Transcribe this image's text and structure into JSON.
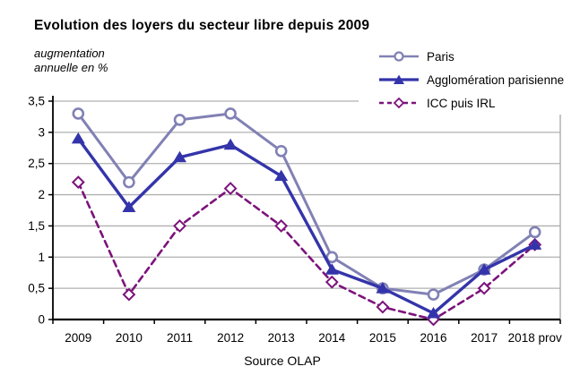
{
  "title": "Evolution des loyers du secteur libre depuis 2009",
  "y_axis_annotation": "augmentation\nannuelle en %",
  "source": "Source OLAP",
  "chart_data": {
    "type": "line",
    "categories": [
      "2009",
      "2010",
      "2011",
      "2012",
      "2013",
      "2014",
      "2015",
      "2016",
      "2017",
      "2018 prov"
    ],
    "series": [
      {
        "name": "Paris",
        "values": [
          3.3,
          2.2,
          3.2,
          3.3,
          2.7,
          1.0,
          0.5,
          0.4,
          0.8,
          1.4
        ],
        "color": "#8181b5",
        "marker": "circle",
        "dash": "solid"
      },
      {
        "name": "Agglomération parisienne",
        "values": [
          2.9,
          1.8,
          2.6,
          2.8,
          2.3,
          0.8,
          0.5,
          0.1,
          0.8,
          1.2
        ],
        "color": "#3434aa",
        "marker": "triangle",
        "dash": "solid"
      },
      {
        "name": "ICC puis IRL",
        "values": [
          2.2,
          0.4,
          1.5,
          2.1,
          1.5,
          0.6,
          0.2,
          0.0,
          0.5,
          1.2
        ],
        "color": "#7c137c",
        "marker": "diamond",
        "dash": "dashed"
      }
    ],
    "ylim": [
      0,
      3.5
    ],
    "ytick_step": 0.5,
    "ytick_labels": [
      "0",
      "0,5",
      "1",
      "1,5",
      "2",
      "2,5",
      "3",
      "3,5"
    ],
    "xlabel": "",
    "ylabel": "augmentation annuelle en %",
    "grid": true,
    "legend_position": "top-right",
    "colors": {
      "gridline": "#b0b0b0",
      "plot_border": "#a6a6a6",
      "axis": "#000000",
      "text": "#000000"
    }
  }
}
